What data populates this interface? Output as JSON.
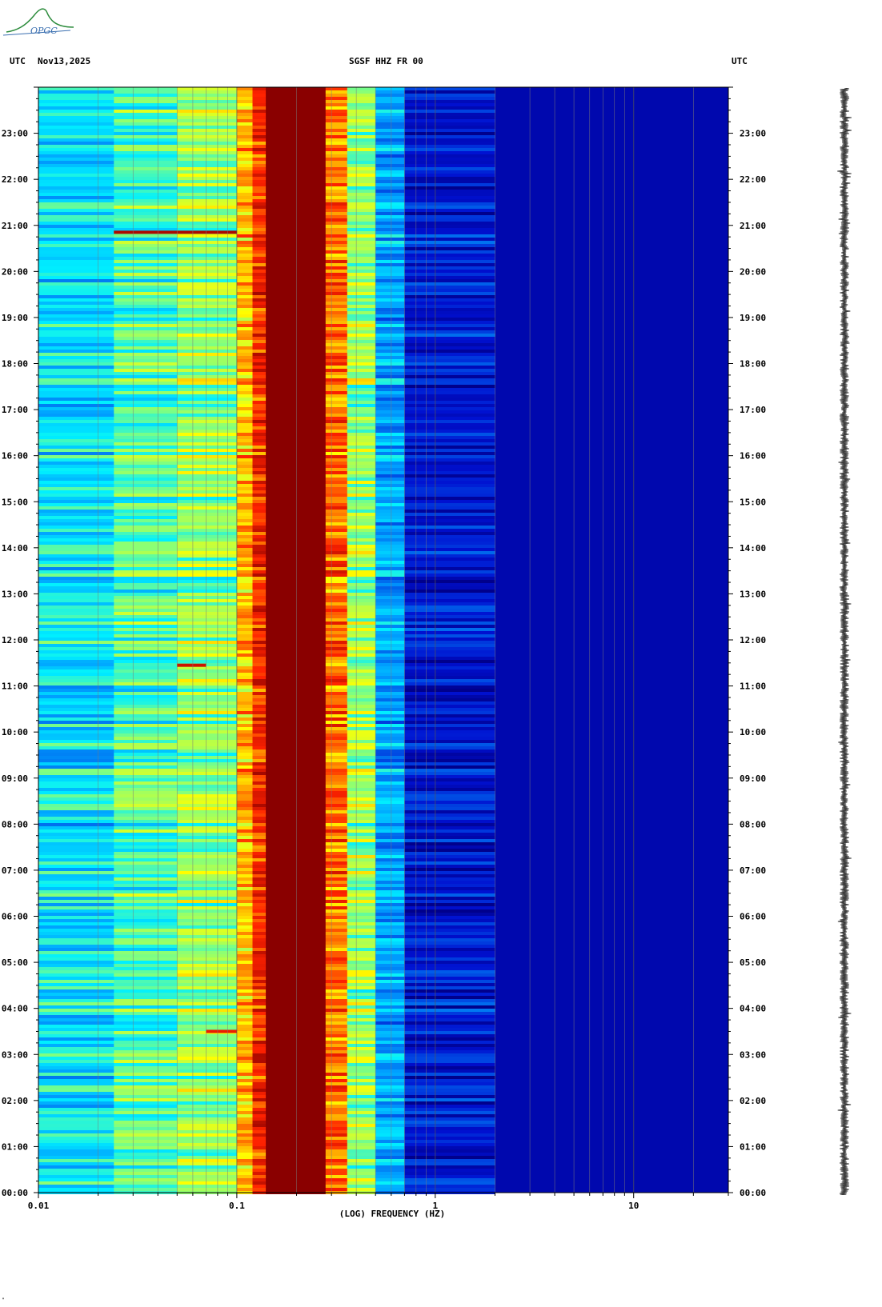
{
  "logo": {
    "text": "OPGC"
  },
  "header": {
    "left_tz": "UTC",
    "date": "Nov13,2025",
    "station": "SGSF HHZ FR 00",
    "right_tz": "UTC"
  },
  "footer_mark": "\"",
  "chart_data": {
    "type": "heatmap",
    "title": "SGSF HHZ FR 00",
    "xlabel": "(LOG) FREQUENCY (HZ)",
    "ylabel": "",
    "x_scale": "log",
    "xlim": [
      0.01,
      30
    ],
    "x_tick_labels": [
      "0.01",
      "0.1",
      "1",
      "10"
    ],
    "x_tick_values": [
      0.01,
      0.1,
      1,
      10
    ],
    "y_tick_labels": [
      "00:00",
      "01:00",
      "02:00",
      "03:00",
      "04:00",
      "05:00",
      "06:00",
      "07:00",
      "08:00",
      "09:00",
      "10:00",
      "11:00",
      "12:00",
      "13:00",
      "14:00",
      "15:00",
      "16:00",
      "17:00",
      "18:00",
      "19:00",
      "20:00",
      "21:00",
      "22:00",
      "23:00"
    ],
    "y_tick_values_hours": [
      0,
      1,
      2,
      3,
      4,
      5,
      6,
      7,
      8,
      9,
      10,
      11,
      12,
      13,
      14,
      15,
      16,
      17,
      18,
      19,
      20,
      21,
      22,
      23
    ],
    "ylim_hours": [
      0,
      24
    ],
    "grid": true,
    "colormap": "jet",
    "colors": {
      "dark_red": "#8a0000",
      "red": "#ff2200",
      "orange": "#ff9900",
      "yellow": "#ffff00",
      "green": "#80ff80",
      "cyan": "#00ffff",
      "light_blue": "#00a0ff",
      "blue": "#0010d0",
      "dark_blue": "#00008c"
    },
    "frequency_bands": [
      {
        "f_min": 0.01,
        "f_max": 0.024,
        "level": 0.38
      },
      {
        "f_min": 0.024,
        "f_max": 0.05,
        "level": 0.46
      },
      {
        "f_min": 0.05,
        "f_max": 0.1,
        "level": 0.52
      },
      {
        "f_min": 0.1,
        "f_max": 0.12,
        "level": 0.68
      },
      {
        "f_min": 0.12,
        "f_max": 0.14,
        "level": 0.82
      },
      {
        "f_min": 0.14,
        "f_max": 0.28,
        "level": 1.0
      },
      {
        "f_min": 0.28,
        "f_max": 0.36,
        "level": 0.75
      },
      {
        "f_min": 0.36,
        "f_max": 0.5,
        "level": 0.52
      },
      {
        "f_min": 0.5,
        "f_max": 0.7,
        "level": 0.3
      },
      {
        "f_min": 0.7,
        "f_max": 2.0,
        "level": 0.1
      },
      {
        "f_min": 2.0,
        "f_max": 30,
        "level": 0.05
      }
    ],
    "events": [
      {
        "hour": 20.85,
        "f_min": 0.024,
        "f_max": 0.1,
        "level": 0.95
      },
      {
        "hour": 11.45,
        "f_min": 0.05,
        "f_max": 0.07,
        "level": 0.9
      },
      {
        "hour": 3.5,
        "f_min": 0.07,
        "f_max": 0.1,
        "level": 0.85
      }
    ],
    "trace": {
      "type": "seismogram",
      "channel": "HHZ"
    }
  }
}
